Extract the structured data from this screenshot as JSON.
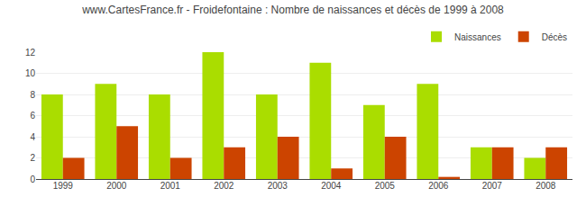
{
  "chart_data": {
    "type": "bar",
    "title": "www.CartesFrance.fr - Froidefontaine : Nombre de naissances et décès de 1999 à 2008",
    "categories": [
      "1999",
      "2000",
      "2001",
      "2002",
      "2003",
      "2004",
      "2005",
      "2006",
      "2007",
      "2008"
    ],
    "series": [
      {
        "name": "Naissances",
        "color": "#aadd00",
        "values": [
          8,
          9,
          8,
          12,
          8,
          11,
          7,
          9,
          3,
          2
        ]
      },
      {
        "name": "Décès",
        "color": "#cc4400",
        "values": [
          2,
          5,
          2,
          3,
          4,
          1,
          4,
          0.2,
          3,
          3
        ]
      }
    ],
    "ylim": [
      0,
      12
    ],
    "yticks": [
      0,
      2,
      4,
      6,
      8,
      10,
      12
    ],
    "grid": true,
    "legend": "upper right"
  }
}
